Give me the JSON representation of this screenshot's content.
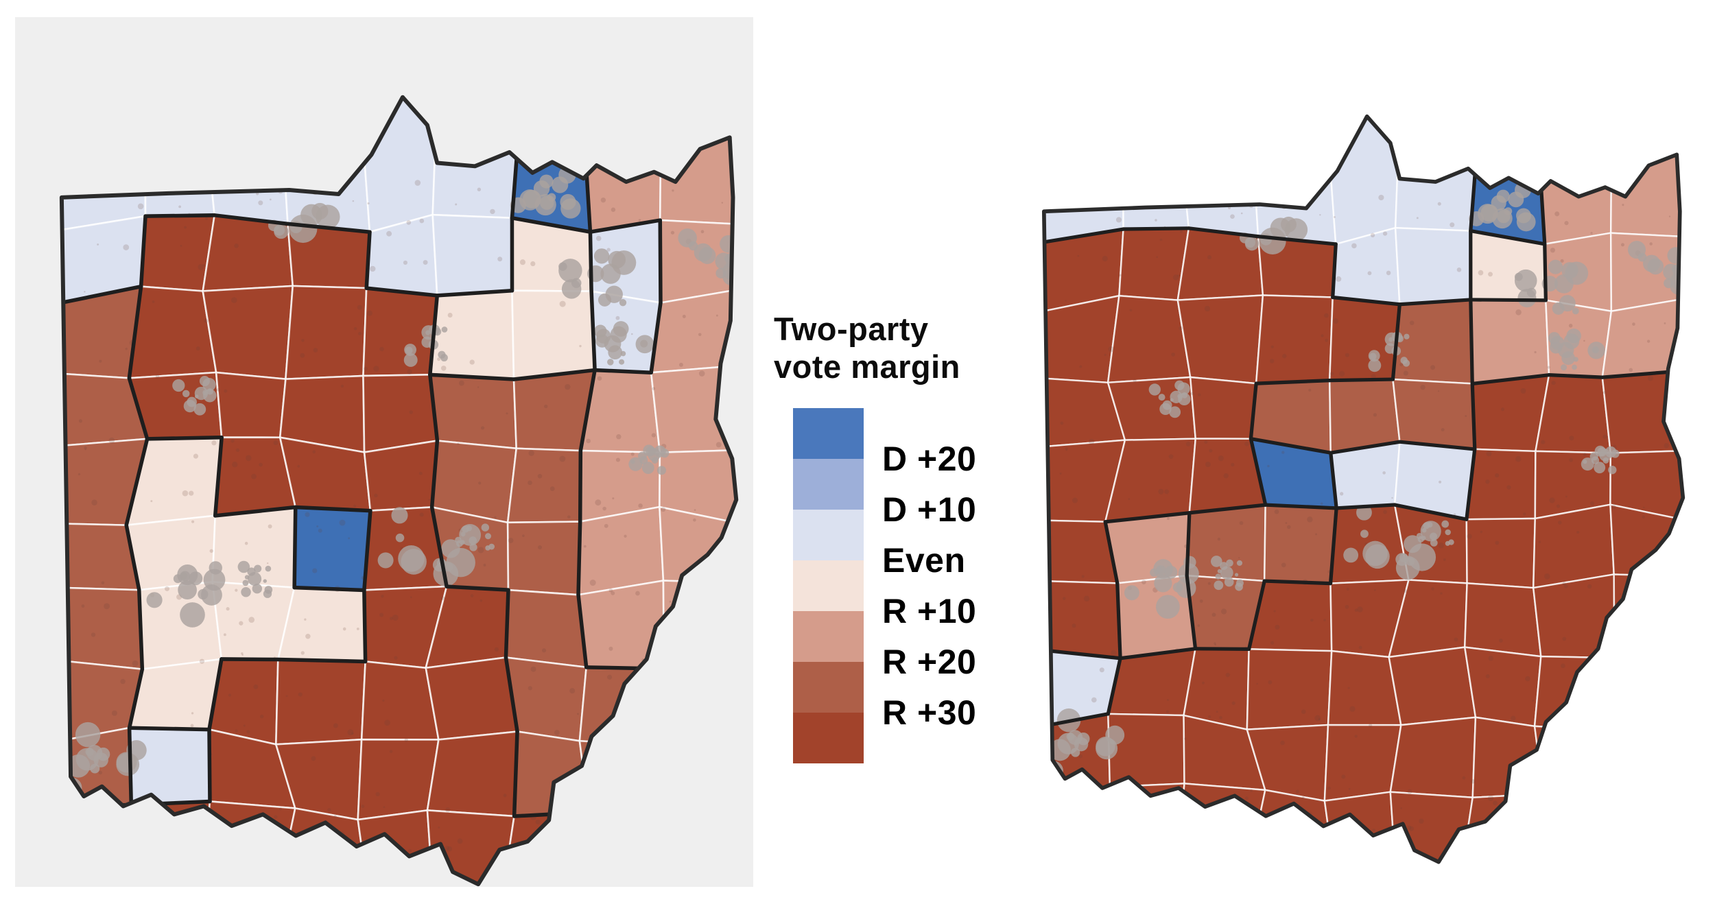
{
  "legend": {
    "title_lines": [
      "Two-party",
      "vote margin"
    ],
    "labels": [
      "D +20",
      "D +10",
      "Even",
      "R +10",
      "R +20",
      "R +30"
    ],
    "swatch_colors": [
      "#4a78bc",
      "#9dafd9",
      "#dbe1f0",
      "#f4e3da",
      "#d59c8b",
      "#ae5f48",
      "#a2432b"
    ]
  },
  "category_colors": {
    "B": "#3e70b5",
    "N": "#9dafd9",
    "b": "#dbe1f0",
    "p": "#f4e3da",
    "s": "#d59c8b",
    "m": "#ae5f48",
    "d": "#a2432b"
  },
  "styles": {
    "panel_bg": "#efefef",
    "county_line": "#ffffff",
    "district_line": "#1e1e1e",
    "state_outline": "#2b2b2b",
    "urban_gray": "#aba29f",
    "speckle": "#6b453a"
  },
  "maps": {
    "left": {
      "name": "ohio-map-left",
      "background": "#efefef",
      "grid": [
        [
          "b",
          "b",
          "b",
          "b",
          "b",
          "b",
          "B",
          "s",
          "s"
        ],
        [
          "b",
          "d",
          "d",
          "d",
          "b",
          "b",
          "p",
          "b",
          "s"
        ],
        [
          "m",
          "d",
          "d",
          "d",
          "d",
          "p",
          "p",
          "b",
          "s"
        ],
        [
          "m",
          "d",
          "d",
          "d",
          "d",
          "m",
          "m",
          "s",
          "s"
        ],
        [
          "m",
          "p",
          "d",
          "d",
          "d",
          "m",
          "m",
          "s",
          "s"
        ],
        [
          "m",
          "p",
          "p",
          "B",
          "d",
          "m",
          "m",
          "s",
          "s"
        ],
        [
          "m",
          "p",
          "p",
          "p",
          "d",
          "d",
          "m",
          "s",
          "s"
        ],
        [
          "m",
          "p",
          "d",
          "d",
          "d",
          "d",
          "m",
          "m",
          "s"
        ],
        [
          "m",
          "b",
          "d",
          "d",
          "d",
          "d",
          "m",
          "m",
          "m"
        ],
        [
          "d",
          "d",
          "d",
          "d",
          "d",
          "d",
          "d",
          "d",
          "d"
        ]
      ]
    },
    "right": {
      "name": "ohio-map-right",
      "background": "#ffffff",
      "grid": [
        [
          "b",
          "b",
          "b",
          "b",
          "b",
          "b",
          "B",
          "s",
          "s"
        ],
        [
          "d",
          "d",
          "d",
          "d",
          "b",
          "b",
          "p",
          "s",
          "s"
        ],
        [
          "d",
          "d",
          "d",
          "d",
          "d",
          "m",
          "s",
          "s",
          "s"
        ],
        [
          "d",
          "d",
          "d",
          "m",
          "m",
          "m",
          "d",
          "d",
          "d"
        ],
        [
          "d",
          "d",
          "d",
          "B",
          "b",
          "b",
          "d",
          "d",
          "d"
        ],
        [
          "d",
          "s",
          "m",
          "m",
          "d",
          "d",
          "d",
          "d",
          "d"
        ],
        [
          "d",
          "s",
          "m",
          "d",
          "d",
          "d",
          "d",
          "d",
          "d"
        ],
        [
          "b",
          "d",
          "d",
          "d",
          "d",
          "d",
          "d",
          "d",
          "d"
        ],
        [
          "d",
          "d",
          "d",
          "d",
          "d",
          "d",
          "d",
          "d",
          "d"
        ],
        [
          "d",
          "d",
          "d",
          "d",
          "d",
          "d",
          "d",
          "d",
          "d"
        ]
      ]
    }
  }
}
